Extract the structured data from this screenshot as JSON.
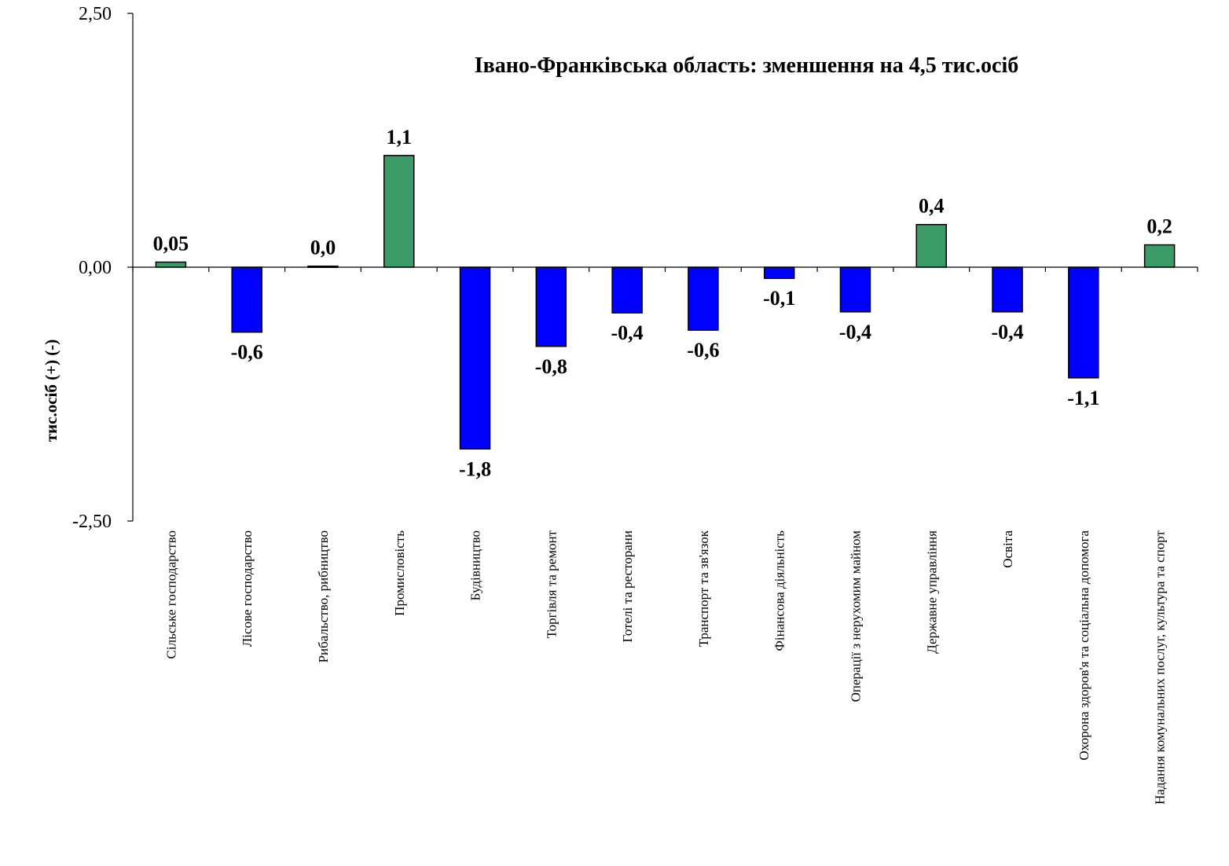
{
  "chart_data": {
    "type": "bar",
    "title": "Івано-Франківська область: зменшення на 4,5 тис.осіб",
    "ylabel": "тис.осіб (+) (-)",
    "xlabel": "",
    "ylim": [
      -2.5,
      2.5
    ],
    "yticks": [
      {
        "value": 2.5,
        "label": "2,50"
      },
      {
        "value": 0,
        "label": "0,00"
      },
      {
        "value": -2.5,
        "label": "-2,50"
      }
    ],
    "grid": false,
    "legend": "none",
    "categories": [
      "Сільське господарство",
      "Лісове господарство",
      "Рибальство, рибництво",
      "Промисловість",
      "Будівництво",
      "Торгівля та ремонт",
      "Готелі та ресторани",
      "Транспорт та зв'язок",
      "Фінансова діяльність",
      "Операції з нерухомим майном",
      "Державне управління",
      "Освіта",
      "Охорона здоров'я та соціальна допомога",
      "Надання комунальних послуг, культура та спорт"
    ],
    "values": [
      0.05,
      -0.64,
      0.01,
      1.1,
      -1.79,
      -0.78,
      -0.45,
      -0.62,
      -0.11,
      -0.44,
      0.42,
      -0.44,
      -1.09,
      0.22
    ],
    "data_labels": [
      "0,05",
      "-0,6",
      "0,0",
      "1,1",
      "-1,8",
      "-0,8",
      "-0,4",
      "-0,6",
      "-0,1",
      "-0,4",
      "0,4",
      "-0,4",
      "-1,1",
      "0,2"
    ],
    "colors": {
      "positive": "#3a9a68",
      "negative": "#0000ff",
      "outline": "#000000"
    }
  }
}
